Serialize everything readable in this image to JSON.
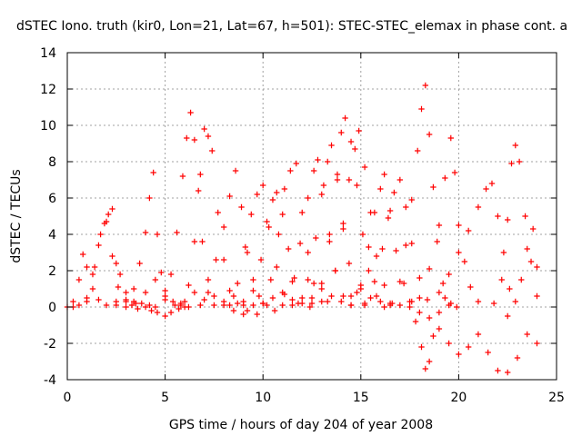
{
  "chart_data": {
    "type": "scatter",
    "title": "dSTEC Iono. truth (kir0, Lon=21, Lat=67, h=501): STEC-STEC_elemax in phase cont. a",
    "xlabel": "GPS time / hours of day 204 of year 2008",
    "ylabel": "dSTEC  / TECUs",
    "xlim": [
      0,
      25
    ],
    "ylim": [
      -4,
      14
    ],
    "xticks": [
      0,
      5,
      10,
      15,
      20,
      25
    ],
    "yticks": [
      -4,
      -2,
      0,
      2,
      4,
      6,
      8,
      10,
      12,
      14
    ],
    "xtick_labels": [
      "0",
      "5",
      "10",
      "15",
      "20",
      "25"
    ],
    "ytick_labels": [
      "-4",
      "-2",
      "0",
      "2",
      "4",
      "6",
      "8",
      "10",
      "12",
      "14"
    ],
    "grid": true,
    "marker": "+",
    "color": "#ff0000",
    "series": [
      {
        "x": [
          0.0,
          0.3,
          0.6,
          0.8,
          1.0,
          1.3,
          1.6,
          2.0,
          2.5,
          3.0,
          3.5,
          4.0,
          4.5,
          5.0,
          5.5,
          6.0,
          6.5,
          7.0,
          7.5,
          8.0,
          8.5,
          9.0,
          9.5,
          10.0,
          10.5,
          11.0,
          11.5,
          12.0,
          12.5,
          13.0,
          13.5,
          14.0,
          14.5,
          15.0,
          15.5,
          16.0,
          16.5,
          17.0,
          17.5,
          18.0,
          18.5,
          19.0,
          19.5,
          20.0,
          20.5,
          21.0,
          21.5,
          22.0,
          22.5,
          23.0,
          23.5,
          24.0
        ],
        "y": [
          0.0,
          0.3,
          1.5,
          2.9,
          2.2,
          1.0,
          0.4,
          0.1,
          0.3,
          0.0,
          0.2,
          0.8,
          1.5,
          0.6,
          0.1,
          0.3,
          0.8,
          0.4,
          0.1,
          0.3,
          0.6,
          0.3,
          0.1,
          0.2,
          0.5,
          0.8,
          0.4,
          0.2,
          0.5,
          1.0,
          0.6,
          0.3,
          0.6,
          1.0,
          0.5,
          0.3,
          0.2,
          0.1,
          0.0,
          -0.3,
          -0.6,
          -1.2,
          -2.0,
          -2.6,
          -2.2,
          -1.5,
          -2.5,
          -3.5,
          -3.6,
          -2.8,
          -1.5,
          -2.0
        ]
      },
      {
        "x": [
          0.3,
          0.6,
          1.0,
          1.4,
          1.7,
          2.0,
          2.3,
          2.6,
          3.0,
          3.3,
          3.6,
          4.0,
          4.3,
          4.6,
          5.0,
          5.3,
          5.7,
          6.0
        ],
        "y": [
          0.0,
          0.1,
          0.5,
          2.2,
          4.0,
          4.7,
          2.8,
          1.1,
          0.4,
          0.1,
          -0.1,
          0.0,
          -0.2,
          -0.3,
          -0.5,
          -0.3,
          -0.1,
          0.0
        ]
      },
      {
        "x": [
          1.0,
          1.3,
          1.6,
          1.9,
          2.1,
          2.3,
          2.5,
          2.7,
          3.0,
          3.4,
          3.8,
          4.2
        ],
        "y": [
          0.3,
          1.8,
          3.4,
          4.6,
          5.1,
          5.4,
          2.4,
          1.8,
          0.8,
          0.3,
          0.2,
          0.1
        ]
      },
      {
        "x": [
          2.5,
          3.0,
          3.4,
          3.7,
          4.0,
          4.2,
          4.4,
          4.6,
          4.8,
          5.0,
          5.4,
          5.8,
          6.2
        ],
        "y": [
          0.1,
          0.3,
          1.0,
          2.4,
          4.1,
          6.0,
          7.4,
          4.0,
          1.9,
          0.9,
          0.3,
          0.1,
          0.0
        ]
      },
      {
        "x": [
          4.5,
          5.0,
          5.3,
          5.6,
          5.9,
          6.1,
          6.3,
          6.5,
          6.7,
          6.9,
          7.2,
          7.5,
          8.0,
          8.5,
          9.0
        ],
        "y": [
          0.0,
          0.4,
          1.8,
          4.1,
          7.2,
          9.3,
          10.7,
          9.2,
          6.4,
          3.6,
          1.5,
          0.6,
          0.1,
          -0.2,
          -0.4
        ]
      },
      {
        "x": [
          5.8,
          6.2,
          6.5,
          6.8,
          7.0,
          7.2,
          7.4,
          7.7,
          8.0,
          8.3,
          8.7,
          9.2,
          9.7
        ],
        "y": [
          0.2,
          1.2,
          3.6,
          7.3,
          9.8,
          9.4,
          8.6,
          5.2,
          2.6,
          0.9,
          0.2,
          -0.2,
          -0.4
        ]
      },
      {
        "x": [
          6.8,
          7.2,
          7.6,
          8.0,
          8.3,
          8.6,
          8.9,
          9.2,
          9.5,
          9.8,
          10.2,
          10.6
        ],
        "y": [
          0.1,
          0.8,
          2.6,
          4.4,
          6.1,
          7.5,
          5.5,
          3.0,
          1.5,
          0.6,
          0.1,
          -0.2
        ]
      },
      {
        "x": [
          8.3,
          8.7,
          9.1,
          9.4,
          9.7,
          10.0,
          10.3,
          10.7,
          11.1,
          11.5
        ],
        "y": [
          0.1,
          1.3,
          3.3,
          5.1,
          6.2,
          6.7,
          4.4,
          2.2,
          0.7,
          0.1
        ]
      },
      {
        "x": [
          9.0,
          9.5,
          9.9,
          10.2,
          10.5,
          10.7,
          11.0,
          11.3,
          11.6,
          12.0,
          12.4
        ],
        "y": [
          0.1,
          0.9,
          2.6,
          4.7,
          5.9,
          6.3,
          5.1,
          3.2,
          1.6,
          0.5,
          0.0
        ]
      },
      {
        "x": [
          10.0,
          10.4,
          10.8,
          11.1,
          11.4,
          11.7,
          12.0,
          12.3,
          12.6,
          13.0
        ],
        "y": [
          0.2,
          1.5,
          4.0,
          6.5,
          7.5,
          7.9,
          5.2,
          3.0,
          1.3,
          0.3
        ]
      },
      {
        "x": [
          11.0,
          11.5,
          11.9,
          12.3,
          12.6,
          12.8,
          13.1,
          13.4,
          13.7,
          14.1,
          14.5
        ],
        "y": [
          0.1,
          1.4,
          3.5,
          6.0,
          7.5,
          8.1,
          6.7,
          4.0,
          2.0,
          0.6,
          0.1
        ]
      },
      {
        "x": [
          11.8,
          12.3,
          12.7,
          13.0,
          13.3,
          13.5,
          13.8,
          14.1,
          14.4,
          14.8,
          15.2
        ],
        "y": [
          0.2,
          1.5,
          3.8,
          6.2,
          8.0,
          8.9,
          7.0,
          4.3,
          2.4,
          0.8,
          0.1
        ]
      },
      {
        "x": [
          12.5,
          13.0,
          13.4,
          13.8,
          14.0,
          14.2,
          14.5,
          14.8,
          15.1,
          15.4,
          15.8,
          16.2
        ],
        "y": [
          0.2,
          1.3,
          3.6,
          7.3,
          9.6,
          10.4,
          9.1,
          6.7,
          4.0,
          2.0,
          0.6,
          0.0
        ]
      },
      {
        "x": [
          13.3,
          13.7,
          14.1,
          14.4,
          14.7,
          14.9,
          15.2,
          15.5,
          15.8,
          16.2,
          16.6
        ],
        "y": [
          0.3,
          2.0,
          4.6,
          7.0,
          8.7,
          9.7,
          7.7,
          5.2,
          2.8,
          1.2,
          0.2
        ]
      },
      {
        "x": [
          14.5,
          15.0,
          15.4,
          15.7,
          16.0,
          16.2,
          16.5,
          16.8,
          17.2,
          17.6
        ],
        "y": [
          0.1,
          1.2,
          3.3,
          5.2,
          6.5,
          7.3,
          5.3,
          3.1,
          1.3,
          0.3
        ]
      },
      {
        "x": [
          15.2,
          15.7,
          16.1,
          16.4,
          16.7,
          17.0,
          17.3,
          17.6,
          18.0,
          18.4
        ],
        "y": [
          0.2,
          1.4,
          3.2,
          4.9,
          6.3,
          7.0,
          5.5,
          3.5,
          1.6,
          0.4
        ]
      },
      {
        "x": [
          16.5,
          17.0,
          17.3,
          17.6,
          17.9,
          18.1,
          18.3,
          18.5,
          18.7,
          18.9,
          19.2,
          19.5
        ],
        "y": [
          0.1,
          1.4,
          3.4,
          5.9,
          8.6,
          10.9,
          12.2,
          9.5,
          6.6,
          3.6,
          1.3,
          0.1
        ]
      },
      {
        "x": [
          17.5,
          17.8,
          18.1,
          18.3,
          18.5,
          18.7,
          19.0,
          19.3,
          19.6,
          19.9
        ],
        "y": [
          0.3,
          -0.8,
          -2.2,
          -3.4,
          -3.0,
          -1.6,
          -0.3,
          0.5,
          0.2,
          0.0
        ]
      },
      {
        "x": [
          18.0,
          18.5,
          19.0,
          19.3,
          19.6,
          19.8,
          20.0,
          20.3,
          20.6,
          21.0
        ],
        "y": [
          0.5,
          2.1,
          4.5,
          7.1,
          9.3,
          7.4,
          4.5,
          2.5,
          1.1,
          0.3
        ]
      },
      {
        "x": [
          19.0,
          19.5,
          20.0,
          20.5,
          21.0,
          21.4,
          21.7,
          22.0,
          22.3,
          22.6
        ],
        "y": [
          0.8,
          1.8,
          3.0,
          4.2,
          5.5,
          6.5,
          6.8,
          5.0,
          3.0,
          1.0
        ]
      },
      {
        "x": [
          21.8,
          22.2,
          22.5,
          22.7,
          22.9,
          23.1,
          23.4,
          23.7,
          24.0
        ],
        "y": [
          0.2,
          1.5,
          4.8,
          7.9,
          8.9,
          8.0,
          5.0,
          2.5,
          0.6
        ]
      },
      {
        "x": [
          22.5,
          22.9,
          23.2,
          23.5,
          23.8,
          24.0
        ],
        "y": [
          -0.5,
          0.3,
          1.5,
          3.2,
          4.3,
          2.2
        ]
      }
    ]
  }
}
